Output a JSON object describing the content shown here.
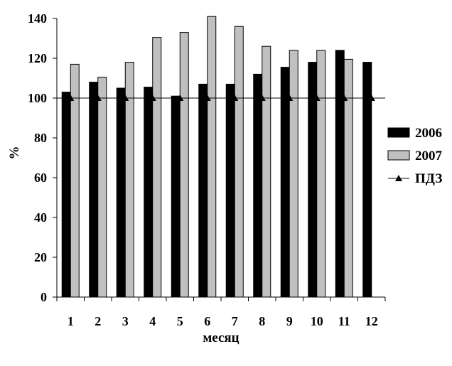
{
  "chart_data": {
    "type": "bar",
    "title": "",
    "xlabel": "месяц",
    "ylabel": "%",
    "ylim": [
      0,
      140
    ],
    "yticks": [
      0,
      20,
      40,
      60,
      80,
      100,
      120,
      140
    ],
    "categories": [
      "1",
      "2",
      "3",
      "4",
      "5",
      "6",
      "7",
      "8",
      "9",
      "10",
      "11",
      "12"
    ],
    "series": [
      {
        "name": "2006",
        "color": "#000000",
        "values": [
          103,
          108,
          105,
          105.5,
          101,
          107,
          107,
          112,
          115.5,
          118,
          124,
          118
        ]
      },
      {
        "name": "2007",
        "color": "#c0c0c0",
        "values": [
          117,
          110.5,
          118,
          130.5,
          133,
          141,
          136,
          126,
          124,
          124,
          119.5,
          null
        ]
      }
    ],
    "line_series": [
      {
        "name": "ПДЗ",
        "color": "#000000",
        "marker": "triangle",
        "values": [
          100,
          100,
          100,
          100,
          100,
          100,
          100,
          100,
          100,
          100,
          100,
          100
        ]
      }
    ],
    "grid": false,
    "legend": "right"
  }
}
